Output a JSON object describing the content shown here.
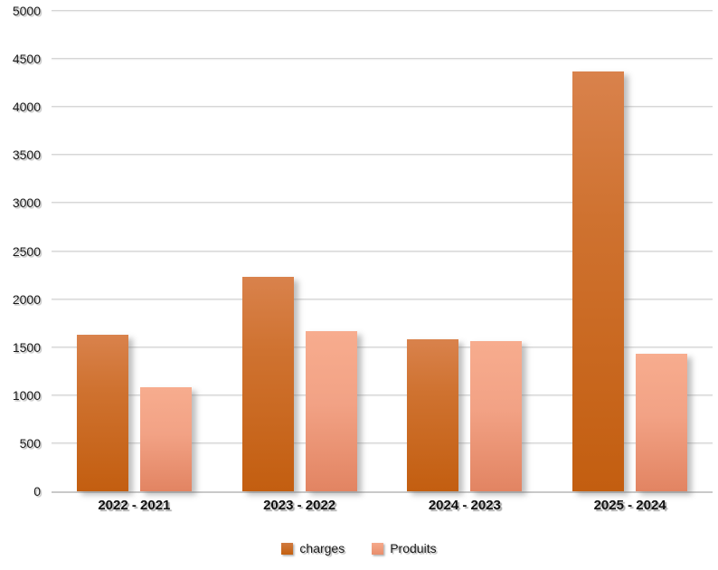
{
  "chart_data": {
    "type": "bar",
    "title": "",
    "categories": [
      "2022 - 2021",
      "2023 - 2022",
      "2024 - 2023",
      "2025 - 2024"
    ],
    "series": [
      {
        "name": "charges",
        "values": [
          1630,
          2230,
          1580,
          4370
        ],
        "color_top": "#d9824c",
        "color_bottom": "#c35e10"
      },
      {
        "name": "Produits",
        "values": [
          1080,
          1665,
          1560,
          1430
        ],
        "color_top": "#f7ac8e",
        "color_bottom": "#e28462"
      }
    ],
    "ylim": [
      0,
      5000
    ],
    "ytick_step": 500,
    "yticks": [
      0,
      500,
      1000,
      1500,
      2000,
      2500,
      3000,
      3500,
      4000,
      4500,
      5000
    ],
    "grid": true,
    "gridline_color": "#d6d6d6",
    "legend_position": "bottom",
    "background_color": "#ffffff"
  }
}
